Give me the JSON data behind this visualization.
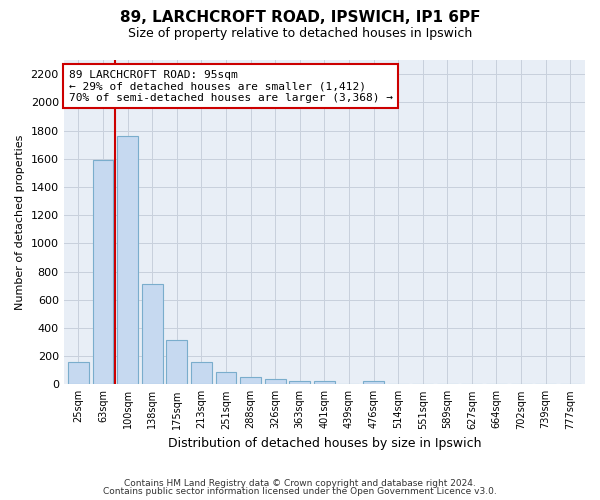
{
  "title_line1": "89, LARCHCROFT ROAD, IPSWICH, IP1 6PF",
  "title_line2": "Size of property relative to detached houses in Ipswich",
  "xlabel": "Distribution of detached houses by size in Ipswich",
  "ylabel": "Number of detached properties",
  "categories": [
    "25sqm",
    "63sqm",
    "100sqm",
    "138sqm",
    "175sqm",
    "213sqm",
    "251sqm",
    "288sqm",
    "326sqm",
    "363sqm",
    "401sqm",
    "439sqm",
    "476sqm",
    "514sqm",
    "551sqm",
    "589sqm",
    "627sqm",
    "664sqm",
    "702sqm",
    "739sqm",
    "777sqm"
  ],
  "values": [
    160,
    1590,
    1760,
    710,
    315,
    160,
    90,
    55,
    35,
    25,
    20,
    0,
    20,
    0,
    0,
    0,
    0,
    0,
    0,
    0,
    0
  ],
  "bar_color": "#c6d9f0",
  "bar_edge_color": "#7aadcc",
  "vline_color": "#cc0000",
  "annotation_text": "89 LARCHCROFT ROAD: 95sqm\n← 29% of detached houses are smaller (1,412)\n70% of semi-detached houses are larger (3,368) →",
  "annotation_box_color": "#ffffff",
  "annotation_box_edge": "#cc0000",
  "ylim": [
    0,
    2300
  ],
  "yticks": [
    0,
    200,
    400,
    600,
    800,
    1000,
    1200,
    1400,
    1600,
    1800,
    2000,
    2200
  ],
  "grid_color": "#c8d0dc",
  "bg_color": "#e8eef6",
  "footer_line1": "Contains HM Land Registry data © Crown copyright and database right 2024.",
  "footer_line2": "Contains public sector information licensed under the Open Government Licence v3.0."
}
